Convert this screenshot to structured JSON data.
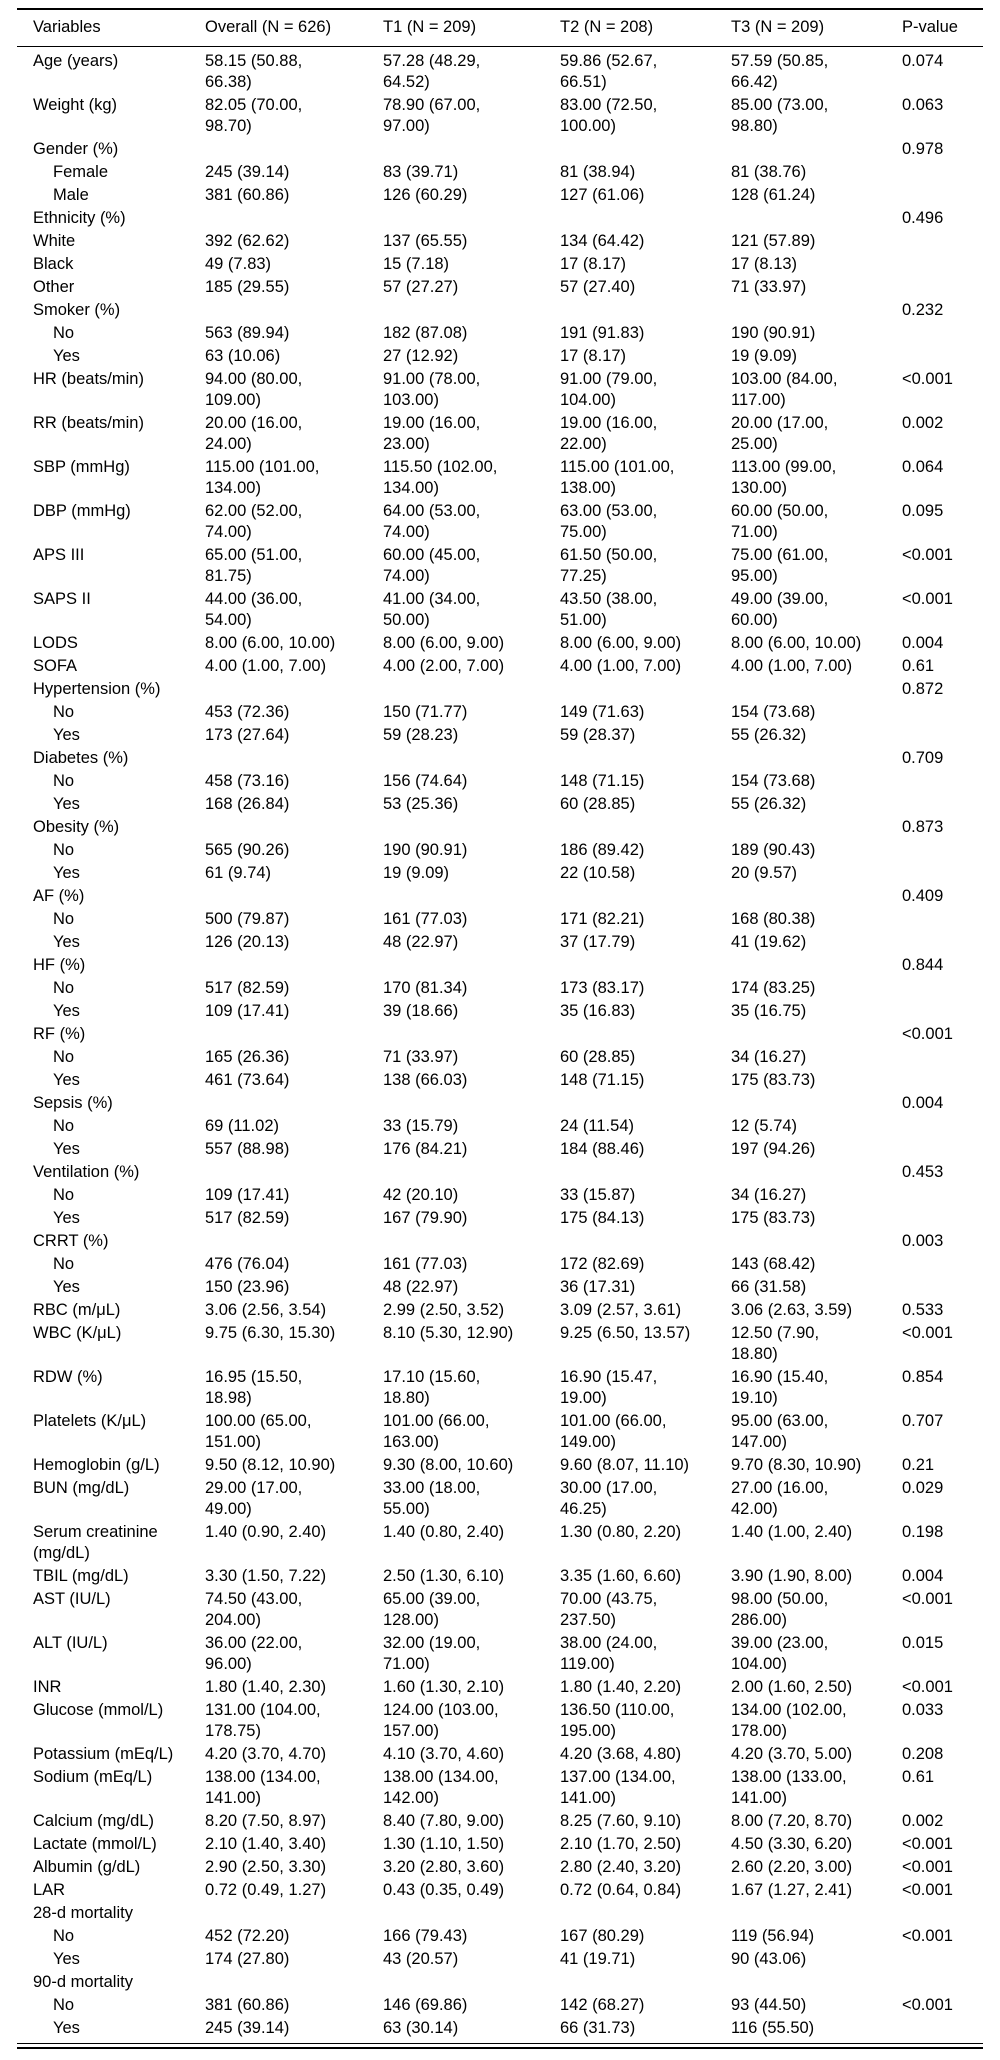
{
  "colors": {
    "text": "#000000",
    "background": "#ffffff",
    "rule": "#000000"
  },
  "table": {
    "columns": [
      "Variables",
      "Overall (N = 626)",
      "T1 (N = 209)",
      "T2 (N = 208)",
      "T3 (N = 209)",
      "P-value"
    ],
    "rows": [
      {
        "label": "Age (years)",
        "indent": 0,
        "values": [
          "58.15 (50.88, 66.38)",
          "57.28 (48.29, 64.52)",
          "59.86 (52.67, 66.51)",
          "57.59 (50.85, 66.42)"
        ],
        "p": "0.074"
      },
      {
        "label": "Weight (kg)",
        "indent": 0,
        "values": [
          "82.05 (70.00, 98.70)",
          "78.90 (67.00, 97.00)",
          "83.00 (72.50, 100.00)",
          "85.00 (73.00, 98.80)"
        ],
        "p": "0.063"
      },
      {
        "label": "Gender (%)",
        "indent": 0,
        "values": [
          "",
          "",
          "",
          ""
        ],
        "p": "0.978"
      },
      {
        "label": "Female",
        "indent": 1,
        "values": [
          "245 (39.14)",
          "83 (39.71)",
          "81 (38.94)",
          "81 (38.76)"
        ],
        "p": ""
      },
      {
        "label": "Male",
        "indent": 1,
        "values": [
          "381 (60.86)",
          "126 (60.29)",
          "127 (61.06)",
          "128 (61.24)"
        ],
        "p": ""
      },
      {
        "label": "Ethnicity (%)",
        "indent": 0,
        "values": [
          "",
          "",
          "",
          ""
        ],
        "p": "0.496"
      },
      {
        "label": "White",
        "indent": 0,
        "values": [
          "392 (62.62)",
          "137 (65.55)",
          "134 (64.42)",
          "121 (57.89)"
        ],
        "p": ""
      },
      {
        "label": "Black",
        "indent": 0,
        "values": [
          "49 (7.83)",
          "15 (7.18)",
          "17 (8.17)",
          "17 (8.13)"
        ],
        "p": ""
      },
      {
        "label": "Other",
        "indent": 0,
        "values": [
          "185 (29.55)",
          "57 (27.27)",
          "57 (27.40)",
          "71 (33.97)"
        ],
        "p": ""
      },
      {
        "label": "Smoker (%)",
        "indent": 0,
        "values": [
          "",
          "",
          "",
          ""
        ],
        "p": "0.232"
      },
      {
        "label": "No",
        "indent": 1,
        "values": [
          "563 (89.94)",
          "182 (87.08)",
          "191 (91.83)",
          "190 (90.91)"
        ],
        "p": ""
      },
      {
        "label": "Yes",
        "indent": 1,
        "values": [
          "63 (10.06)",
          "27 (12.92)",
          "17 (8.17)",
          "19 (9.09)"
        ],
        "p": ""
      },
      {
        "label": "HR (beats/min)",
        "indent": 0,
        "values": [
          "94.00 (80.00, 109.00)",
          "91.00 (78.00, 103.00)",
          "91.00 (79.00, 104.00)",
          "103.00 (84.00, 117.00)"
        ],
        "p": "<0.001"
      },
      {
        "label": "RR (beats/min)",
        "indent": 0,
        "values": [
          "20.00 (16.00, 24.00)",
          "19.00 (16.00, 23.00)",
          "19.00 (16.00, 22.00)",
          "20.00 (17.00, 25.00)"
        ],
        "p": "0.002"
      },
      {
        "label": "SBP (mmHg)",
        "indent": 0,
        "values": [
          "115.00 (101.00, 134.00)",
          "115.50 (102.00, 134.00)",
          "115.00 (101.00, 138.00)",
          "113.00 (99.00, 130.00)"
        ],
        "p": "0.064"
      },
      {
        "label": "DBP (mmHg)",
        "indent": 0,
        "values": [
          "62.00 (52.00, 74.00)",
          "64.00 (53.00, 74.00)",
          "63.00 (53.00, 75.00)",
          "60.00 (50.00, 71.00)"
        ],
        "p": "0.095"
      },
      {
        "label": "APS III",
        "indent": 0,
        "values": [
          "65.00 (51.00, 81.75)",
          "60.00 (45.00, 74.00)",
          "61.50 (50.00, 77.25)",
          "75.00 (61.00, 95.00)"
        ],
        "p": "<0.001"
      },
      {
        "label": "SAPS II",
        "indent": 0,
        "values": [
          "44.00 (36.00, 54.00)",
          "41.00 (34.00, 50.00)",
          "43.50 (38.00, 51.00)",
          "49.00 (39.00, 60.00)"
        ],
        "p": "<0.001"
      },
      {
        "label": "LODS",
        "indent": 0,
        "values": [
          "8.00 (6.00, 10.00)",
          "8.00 (6.00, 9.00)",
          "8.00 (6.00, 9.00)",
          "8.00 (6.00, 10.00)"
        ],
        "p": "0.004"
      },
      {
        "label": "SOFA",
        "indent": 0,
        "values": [
          "4.00 (1.00, 7.00)",
          "4.00 (2.00, 7.00)",
          "4.00 (1.00, 7.00)",
          "4.00 (1.00, 7.00)"
        ],
        "p": "0.61"
      },
      {
        "label": "Hypertension (%)",
        "indent": 0,
        "values": [
          "",
          "",
          "",
          ""
        ],
        "p": "0.872"
      },
      {
        "label": "No",
        "indent": 1,
        "values": [
          "453 (72.36)",
          "150 (71.77)",
          "149 (71.63)",
          "154 (73.68)"
        ],
        "p": ""
      },
      {
        "label": "Yes",
        "indent": 1,
        "values": [
          "173 (27.64)",
          "59 (28.23)",
          "59 (28.37)",
          "55 (26.32)"
        ],
        "p": ""
      },
      {
        "label": "Diabetes (%)",
        "indent": 0,
        "values": [
          "",
          "",
          "",
          ""
        ],
        "p": "0.709"
      },
      {
        "label": "No",
        "indent": 1,
        "values": [
          "458 (73.16)",
          "156 (74.64)",
          "148 (71.15)",
          "154 (73.68)"
        ],
        "p": ""
      },
      {
        "label": "Yes",
        "indent": 1,
        "values": [
          "168 (26.84)",
          "53 (25.36)",
          "60 (28.85)",
          "55 (26.32)"
        ],
        "p": ""
      },
      {
        "label": "Obesity (%)",
        "indent": 0,
        "values": [
          "",
          "",
          "",
          ""
        ],
        "p": "0.873"
      },
      {
        "label": "No",
        "indent": 1,
        "values": [
          "565 (90.26)",
          "190 (90.91)",
          "186 (89.42)",
          "189 (90.43)"
        ],
        "p": ""
      },
      {
        "label": "Yes",
        "indent": 1,
        "values": [
          "61 (9.74)",
          "19 (9.09)",
          "22 (10.58)",
          "20 (9.57)"
        ],
        "p": ""
      },
      {
        "label": "AF (%)",
        "indent": 0,
        "values": [
          "",
          "",
          "",
          ""
        ],
        "p": "0.409"
      },
      {
        "label": "No",
        "indent": 1,
        "values": [
          "500 (79.87)",
          "161 (77.03)",
          "171 (82.21)",
          "168 (80.38)"
        ],
        "p": ""
      },
      {
        "label": "Yes",
        "indent": 1,
        "values": [
          "126 (20.13)",
          "48 (22.97)",
          "37 (17.79)",
          "41 (19.62)"
        ],
        "p": ""
      },
      {
        "label": "HF (%)",
        "indent": 0,
        "values": [
          "",
          "",
          "",
          ""
        ],
        "p": "0.844"
      },
      {
        "label": "No",
        "indent": 1,
        "values": [
          "517 (82.59)",
          "170 (81.34)",
          "173 (83.17)",
          "174 (83.25)"
        ],
        "p": ""
      },
      {
        "label": "Yes",
        "indent": 1,
        "values": [
          "109 (17.41)",
          "39 (18.66)",
          "35 (16.83)",
          "35 (16.75)"
        ],
        "p": ""
      },
      {
        "label": "RF (%)",
        "indent": 0,
        "values": [
          "",
          "",
          "",
          ""
        ],
        "p": "<0.001"
      },
      {
        "label": "No",
        "indent": 1,
        "values": [
          "165 (26.36)",
          "71 (33.97)",
          "60 (28.85)",
          "34 (16.27)"
        ],
        "p": ""
      },
      {
        "label": "Yes",
        "indent": 1,
        "values": [
          "461 (73.64)",
          "138 (66.03)",
          "148 (71.15)",
          "175 (83.73)"
        ],
        "p": ""
      },
      {
        "label": "Sepsis (%)",
        "indent": 0,
        "values": [
          "",
          "",
          "",
          ""
        ],
        "p": "0.004"
      },
      {
        "label": "No",
        "indent": 1,
        "values": [
          "69 (11.02)",
          "33 (15.79)",
          "24 (11.54)",
          "12 (5.74)"
        ],
        "p": ""
      },
      {
        "label": "Yes",
        "indent": 1,
        "values": [
          "557 (88.98)",
          "176 (84.21)",
          "184 (88.46)",
          "197 (94.26)"
        ],
        "p": ""
      },
      {
        "label": "Ventilation (%)",
        "indent": 0,
        "values": [
          "",
          "",
          "",
          ""
        ],
        "p": "0.453"
      },
      {
        "label": "No",
        "indent": 1,
        "values": [
          "109 (17.41)",
          "42 (20.10)",
          "33 (15.87)",
          "34 (16.27)"
        ],
        "p": ""
      },
      {
        "label": "Yes",
        "indent": 1,
        "values": [
          "517 (82.59)",
          "167 (79.90)",
          "175 (84.13)",
          "175 (83.73)"
        ],
        "p": ""
      },
      {
        "label": "CRRT (%)",
        "indent": 0,
        "values": [
          "",
          "",
          "",
          ""
        ],
        "p": "0.003"
      },
      {
        "label": "No",
        "indent": 1,
        "values": [
          "476 (76.04)",
          "161 (77.03)",
          "172 (82.69)",
          "143 (68.42)"
        ],
        "p": ""
      },
      {
        "label": "Yes",
        "indent": 1,
        "values": [
          "150 (23.96)",
          "48 (22.97)",
          "36 (17.31)",
          "66 (31.58)"
        ],
        "p": ""
      },
      {
        "label": "RBC (m/μL)",
        "indent": 0,
        "values": [
          "3.06 (2.56, 3.54)",
          "2.99 (2.50, 3.52)",
          "3.09 (2.57, 3.61)",
          "3.06 (2.63, 3.59)"
        ],
        "p": "0.533"
      },
      {
        "label": "WBC (K/μL)",
        "indent": 0,
        "values": [
          "9.75 (6.30, 15.30)",
          "8.10 (5.30, 12.90)",
          "9.25 (6.50, 13.57)",
          "12.50 (7.90, 18.80)"
        ],
        "p": "<0.001"
      },
      {
        "label": "RDW (%)",
        "indent": 0,
        "values": [
          "16.95 (15.50, 18.98)",
          "17.10 (15.60, 18.80)",
          "16.90 (15.47, 19.00)",
          "16.90 (15.40, 19.10)"
        ],
        "p": "0.854"
      },
      {
        "label": "Platelets (K/μL)",
        "indent": 0,
        "values": [
          "100.00 (65.00, 151.00)",
          "101.00 (66.00, 163.00)",
          "101.00 (66.00, 149.00)",
          "95.00 (63.00, 147.00)"
        ],
        "p": "0.707"
      },
      {
        "label": "Hemoglobin (g/L)",
        "indent": 0,
        "values": [
          "9.50 (8.12, 10.90)",
          "9.30 (8.00, 10.60)",
          "9.60 (8.07, 11.10)",
          "9.70 (8.30, 10.90)"
        ],
        "p": "0.21"
      },
      {
        "label": "BUN (mg/dL)",
        "indent": 0,
        "values": [
          "29.00 (17.00, 49.00)",
          "33.00 (18.00, 55.00)",
          "30.00 (17.00, 46.25)",
          "27.00 (16.00, 42.00)"
        ],
        "p": "0.029"
      },
      {
        "label": "Serum creatinine (mg/dL)",
        "indent": 0,
        "values": [
          "1.40 (0.90, 2.40)",
          "1.40 (0.80, 2.40)",
          "1.30 (0.80, 2.20)",
          "1.40 (1.00, 2.40)"
        ],
        "p": "0.198"
      },
      {
        "label": "TBIL (mg/dL)",
        "indent": 0,
        "values": [
          "3.30 (1.50, 7.22)",
          "2.50 (1.30, 6.10)",
          "3.35 (1.60, 6.60)",
          "3.90 (1.90, 8.00)"
        ],
        "p": "0.004"
      },
      {
        "label": "AST (IU/L)",
        "indent": 0,
        "values": [
          "74.50 (43.00, 204.00)",
          "65.00 (39.00, 128.00)",
          "70.00 (43.75, 237.50)",
          "98.00 (50.00, 286.00)"
        ],
        "p": "<0.001"
      },
      {
        "label": "ALT (IU/L)",
        "indent": 0,
        "values": [
          "36.00 (22.00, 96.00)",
          "32.00 (19.00, 71.00)",
          "38.00 (24.00, 119.00)",
          "39.00 (23.00, 104.00)"
        ],
        "p": "0.015"
      },
      {
        "label": "INR",
        "indent": 0,
        "values": [
          "1.80 (1.40, 2.30)",
          "1.60 (1.30, 2.10)",
          "1.80 (1.40, 2.20)",
          "2.00 (1.60, 2.50)"
        ],
        "p": "<0.001"
      },
      {
        "label": "Glucose (mmol/L)",
        "indent": 0,
        "values": [
          "131.00 (104.00, 178.75)",
          "124.00 (103.00, 157.00)",
          "136.50 (110.00, 195.00)",
          "134.00 (102.00, 178.00)"
        ],
        "p": "0.033"
      },
      {
        "label": "Potassium (mEq/L)",
        "indent": 0,
        "values": [
          "4.20 (3.70, 4.70)",
          "4.10 (3.70, 4.60)",
          "4.20 (3.68, 4.80)",
          "4.20 (3.70, 5.00)"
        ],
        "p": "0.208"
      },
      {
        "label": "Sodium (mEq/L)",
        "indent": 0,
        "values": [
          "138.00 (134.00, 141.00)",
          "138.00 (134.00, 142.00)",
          "137.00 (134.00, 141.00)",
          "138.00 (133.00, 141.00)"
        ],
        "p": "0.61"
      },
      {
        "label": "Calcium (mg/dL)",
        "indent": 0,
        "values": [
          "8.20 (7.50, 8.97)",
          "8.40 (7.80, 9.00)",
          "8.25 (7.60, 9.10)",
          "8.00 (7.20, 8.70)"
        ],
        "p": "0.002"
      },
      {
        "label": "Lactate (mmol/L)",
        "indent": 0,
        "values": [
          "2.10 (1.40, 3.40)",
          "1.30 (1.10, 1.50)",
          "2.10 (1.70, 2.50)",
          "4.50 (3.30, 6.20)"
        ],
        "p": "<0.001"
      },
      {
        "label": "Albumin (g/dL)",
        "indent": 0,
        "values": [
          "2.90 (2.50, 3.30)",
          "3.20 (2.80, 3.60)",
          "2.80 (2.40, 3.20)",
          "2.60 (2.20, 3.00)"
        ],
        "p": "<0.001"
      },
      {
        "label": "LAR",
        "indent": 0,
        "values": [
          "0.72 (0.49, 1.27)",
          "0.43 (0.35, 0.49)",
          "0.72 (0.64, 0.84)",
          "1.67 (1.27, 2.41)"
        ],
        "p": "<0.001"
      },
      {
        "label": "28-d mortality",
        "indent": 0,
        "values": [
          "",
          "",
          "",
          ""
        ],
        "p": ""
      },
      {
        "label": "No",
        "indent": 1,
        "values": [
          "452 (72.20)",
          "166 (79.43)",
          "167 (80.29)",
          "119 (56.94)"
        ],
        "p": "<0.001"
      },
      {
        "label": "Yes",
        "indent": 1,
        "values": [
          "174 (27.80)",
          "43 (20.57)",
          "41 (19.71)",
          "90 (43.06)"
        ],
        "p": ""
      },
      {
        "label": "90-d mortality",
        "indent": 0,
        "values": [
          "",
          "",
          "",
          ""
        ],
        "p": ""
      },
      {
        "label": "No",
        "indent": 1,
        "values": [
          "381 (60.86)",
          "146 (69.86)",
          "142 (68.27)",
          "93 (44.50)"
        ],
        "p": "<0.001"
      },
      {
        "label": "Yes",
        "indent": 1,
        "values": [
          "245 (39.14)",
          "63 (30.14)",
          "66 (31.73)",
          "116 (55.50)"
        ],
        "p": ""
      }
    ]
  }
}
